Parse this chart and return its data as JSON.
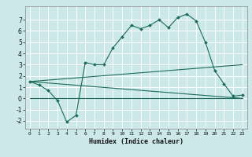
{
  "xlabel": "Humidex (Indice chaleur)",
  "xlim": [
    -0.5,
    23.5
  ],
  "ylim": [
    -2.7,
    8.2
  ],
  "yticks": [
    -2,
    -1,
    0,
    1,
    2,
    3,
    4,
    5,
    6,
    7
  ],
  "xticks": [
    0,
    1,
    2,
    3,
    4,
    5,
    6,
    7,
    8,
    9,
    10,
    11,
    12,
    13,
    14,
    15,
    16,
    17,
    18,
    19,
    20,
    21,
    22,
    23
  ],
  "bg_color": "#cce8e8",
  "grid_color": "#ffffff",
  "line_color": "#1a6b5a",
  "series": {
    "main": {
      "x": [
        0,
        1,
        2,
        3,
        4,
        5,
        6,
        7,
        8,
        9,
        10,
        11,
        12,
        13,
        14,
        15,
        16,
        17,
        18,
        19,
        20,
        21,
        22,
        23
      ],
      "y": [
        1.5,
        1.2,
        0.7,
        -0.2,
        -2.1,
        -1.5,
        3.2,
        3.0,
        3.0,
        4.5,
        5.5,
        6.5,
        6.2,
        6.5,
        7.0,
        6.3,
        7.2,
        7.5,
        6.9,
        5.0,
        2.5,
        1.3,
        0.2,
        0.3
      ]
    },
    "upper_band": {
      "x": [
        0,
        23
      ],
      "y": [
        1.5,
        3.0
      ]
    },
    "lower_band": {
      "x": [
        0,
        23
      ],
      "y": [
        1.5,
        0.0
      ]
    },
    "flat_line": {
      "x": [
        0,
        23
      ],
      "y": [
        0.0,
        0.0
      ]
    }
  }
}
